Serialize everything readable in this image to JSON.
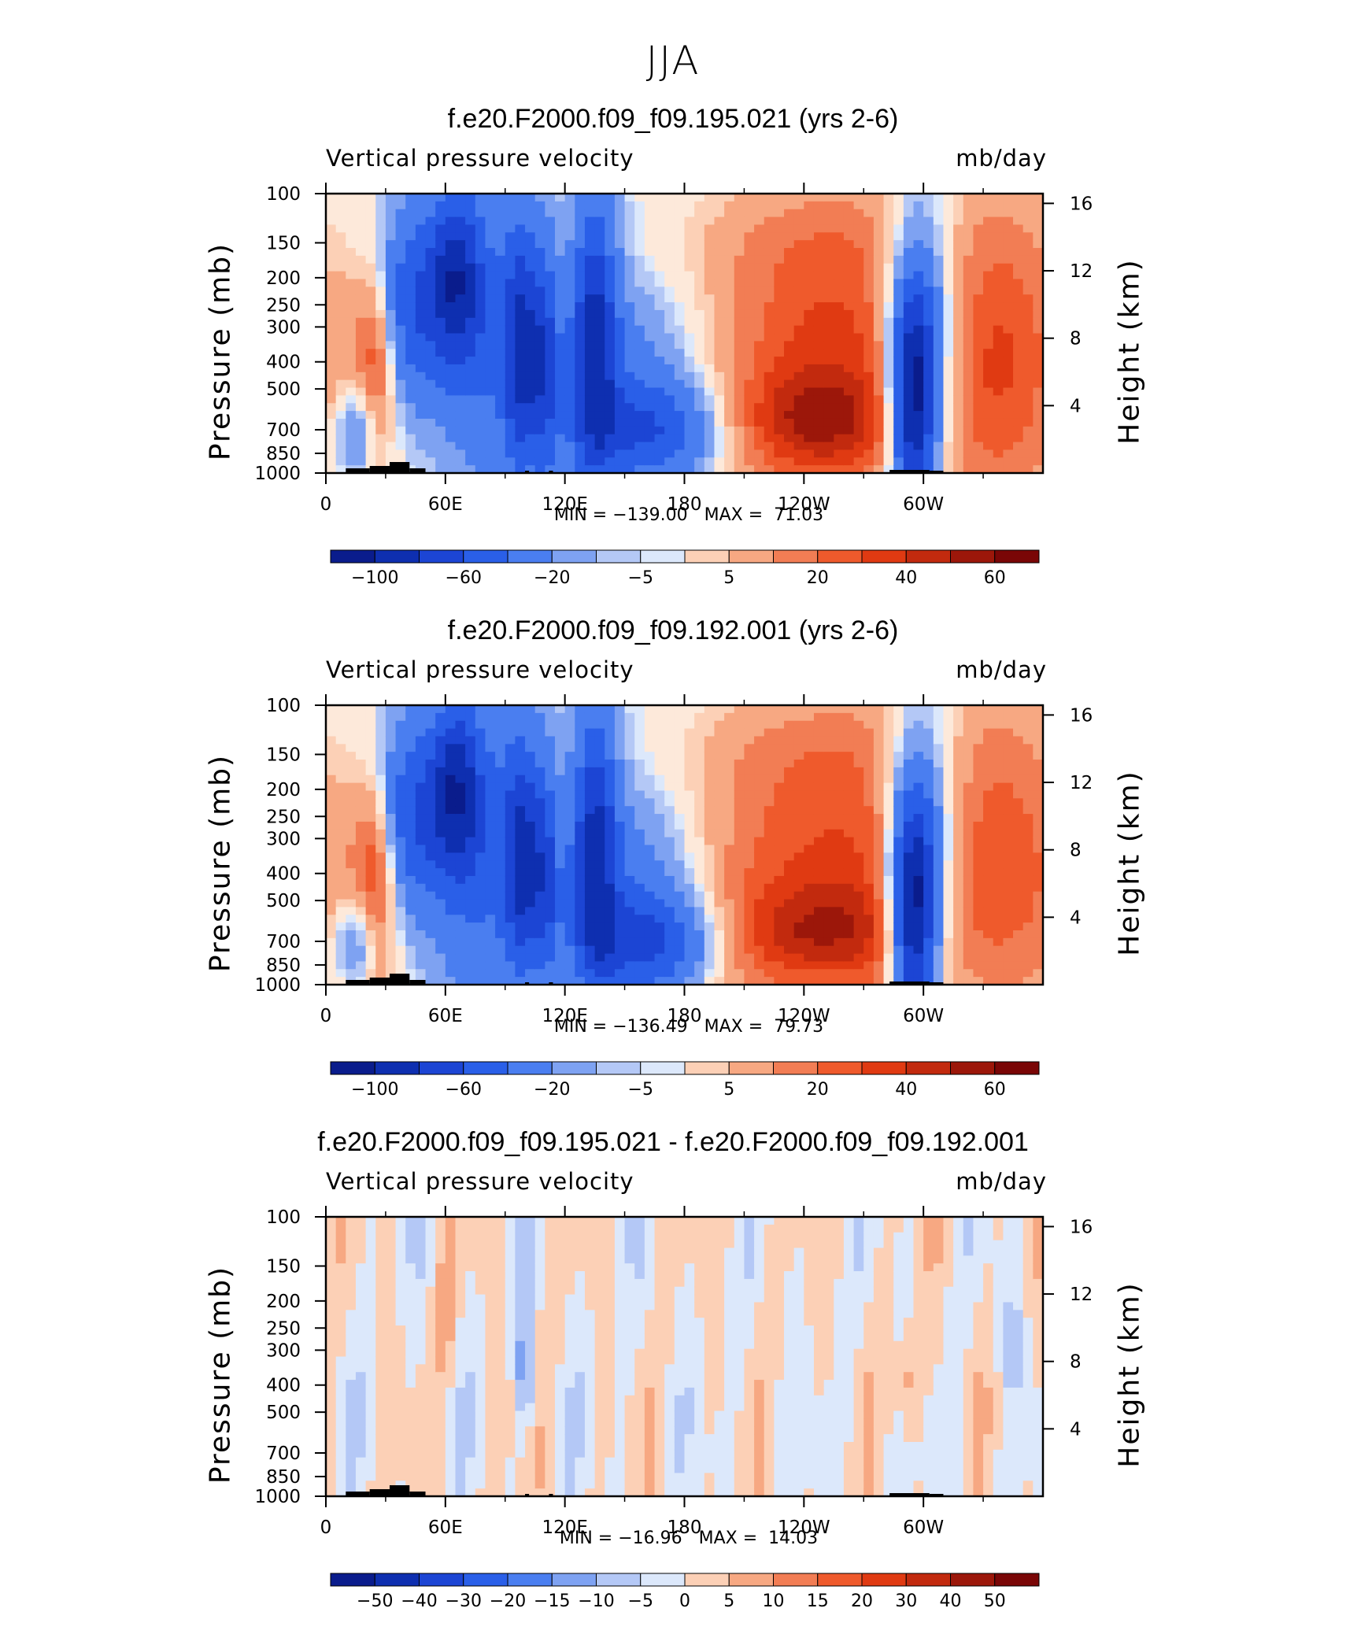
{
  "figure": {
    "title": "JJA"
  },
  "panels": [
    {
      "title": "f.e20.F2000.f09_f09.195.021 (yrs 2-6)",
      "left_label": "Vertical pressure velocity",
      "right_label": "mb/day",
      "ylabel_left": "Pressure (mb)",
      "ylabel_right": "Height (km)",
      "min_text": "MIN = −139.00",
      "max_text": "MAX =  71.03",
      "colorbar_labels": [
        "−100",
        "−60",
        "−20",
        "−5",
        "5",
        "20",
        "40",
        "60"
      ]
    },
    {
      "title": "f.e20.F2000.f09_f09.192.001 (yrs 2-6)",
      "left_label": "Vertical pressure velocity",
      "right_label": "mb/day",
      "ylabel_left": "Pressure (mb)",
      "ylabel_right": "Height (km)",
      "min_text": "MIN = −136.49",
      "max_text": "MAX =  79.73",
      "colorbar_labels": [
        "−100",
        "−60",
        "−20",
        "−5",
        "5",
        "20",
        "40",
        "60"
      ]
    },
    {
      "title": "f.e20.F2000.f09_f09.195.021 - f.e20.F2000.f09_f09.192.001",
      "left_label": "Vertical pressure velocity",
      "right_label": "mb/day",
      "ylabel_left": "Pressure (mb)",
      "ylabel_right": "Height (km)",
      "min_text": "MIN = −16.96",
      "max_text": "MAX =  14.03",
      "colorbar_labels": [
        "−50",
        "−40",
        "−30",
        "−20",
        "−15",
        "−10",
        "−5",
        "0",
        "5",
        "10",
        "15",
        "20",
        "30",
        "40",
        "50"
      ]
    }
  ],
  "chart_data": [
    {
      "type": "heatmap",
      "title": "f.e20.F2000.f09_f09.195.021 (yrs 2-6)",
      "variable": "Vertical pressure velocity",
      "units": "mb/day",
      "xlabel": "",
      "ylabel": "Pressure (mb)",
      "ylabel_right": "Height (km)",
      "x_ticks": [
        "0",
        "60E",
        "120E",
        "180",
        "120W",
        "60W"
      ],
      "y_ticks": [
        "100",
        "150",
        "200",
        "250",
        "300",
        "400",
        "500",
        "700",
        "850",
        "1000"
      ],
      "y_ticks_right": [
        "16",
        "12",
        "8",
        "4"
      ],
      "ylim": [
        1000,
        100
      ],
      "xlim": [
        0,
        360
      ],
      "min": -139.0,
      "max": 71.03,
      "contour_levels": [
        -100,
        -80,
        -60,
        -40,
        -20,
        -10,
        -5,
        -2,
        2,
        5,
        10,
        20,
        30,
        40,
        50,
        60,
        80
      ],
      "colors": [
        "#0a1c8c",
        "#0e2fb0",
        "#1c45d4",
        "#2a5fe8",
        "#4a7ef0",
        "#7ea2f2",
        "#b4c8f6",
        "#dce8fb",
        "#fde9da",
        "#fcd0b6",
        "#f7a882",
        "#f27d54",
        "#ef5a2c",
        "#e03a12",
        "#c22a0e",
        "#9c170a",
        "#7a0606"
      ]
    },
    {
      "type": "heatmap",
      "title": "f.e20.F2000.f09_f09.192.001 (yrs 2-6)",
      "variable": "Vertical pressure velocity",
      "units": "mb/day",
      "x_ticks": [
        "0",
        "60E",
        "120E",
        "180",
        "120W",
        "60W"
      ],
      "y_ticks": [
        "100",
        "150",
        "200",
        "250",
        "300",
        "400",
        "500",
        "700",
        "850",
        "1000"
      ],
      "y_ticks_right": [
        "16",
        "12",
        "8",
        "4"
      ],
      "ylim": [
        1000,
        100
      ],
      "xlim": [
        0,
        360
      ],
      "min": -136.49,
      "max": 79.73
    },
    {
      "type": "heatmap",
      "title": "f.e20.F2000.f09_f09.195.021 - f.e20.F2000.f09_f09.192.001",
      "variable": "Vertical pressure velocity",
      "units": "mb/day",
      "x_ticks": [
        "0",
        "60E",
        "120E",
        "180",
        "120W",
        "60W"
      ],
      "y_ticks": [
        "100",
        "150",
        "200",
        "250",
        "300",
        "400",
        "500",
        "700",
        "850",
        "1000"
      ],
      "y_ticks_right": [
        "16",
        "12",
        "8",
        "4"
      ],
      "ylim": [
        1000,
        100
      ],
      "xlim": [
        0,
        360
      ],
      "min": -16.96,
      "max": 14.03,
      "contour_levels": [
        -50,
        -40,
        -30,
        -20,
        -15,
        -10,
        -5,
        0,
        5,
        10,
        15,
        20,
        30,
        40,
        50
      ]
    }
  ]
}
